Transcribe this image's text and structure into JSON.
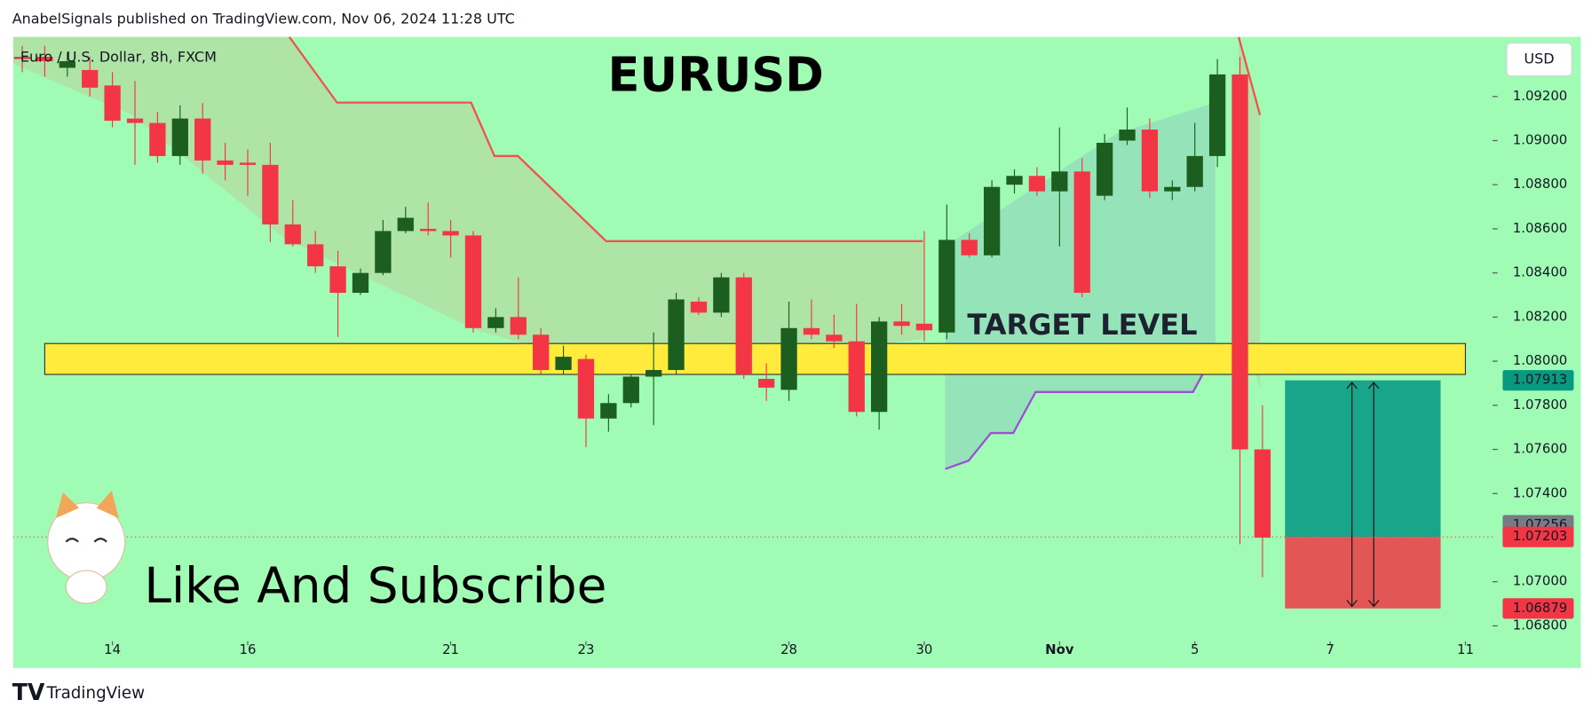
{
  "header": "AnabelSignals published on TradingView.com, Nov 06, 2024 11:28 UTC",
  "footer": "TradingView",
  "chart_data": {
    "type": "candlestick",
    "title": "EURUSD",
    "subtitle": "Euro / U.S. Dollar, 8h, FXCM",
    "currency": "USD",
    "annotations": [
      "TARGET LEVEL",
      "Like And Subscribe"
    ],
    "up_color": "#1b5e20",
    "down_color": "#f23645",
    "open": [
      1.0938,
      1.0938,
      1.0933,
      1.0932,
      1.0925,
      1.091,
      1.0908,
      1.0893,
      1.091,
      1.0891,
      1.089,
      1.0889,
      1.0862,
      1.0853,
      1.0843,
      1.0831,
      1.084,
      1.0859,
      1.086,
      1.0859,
      1.0857,
      1.0815,
      1.082,
      1.0812,
      1.0796,
      1.0801,
      1.0774,
      1.0781,
      1.0793,
      1.0796,
      1.0827,
      1.0822,
      1.0838,
      1.0792,
      1.0787,
      1.0815,
      1.0812,
      1.0809,
      1.0777,
      1.0818,
      1.0817,
      1.0813,
      1.0855,
      1.0848,
      1.088,
      1.0884,
      1.0877,
      1.0886,
      1.0875,
      1.09,
      1.0905,
      1.0877,
      1.0879,
      1.0893,
      1.093,
      1.076
    ],
    "high": [
      1.0943,
      1.0943,
      1.094,
      1.0938,
      1.0931,
      1.0927,
      1.0913,
      1.0916,
      1.0917,
      1.0899,
      1.0896,
      1.0899,
      1.0873,
      1.0859,
      1.085,
      1.0842,
      1.0864,
      1.087,
      1.0872,
      1.0864,
      1.0859,
      1.0824,
      1.0838,
      1.0815,
      1.0807,
      1.0803,
      1.0785,
      1.0794,
      1.0813,
      1.0831,
      1.0829,
      1.084,
      1.084,
      1.0799,
      1.0827,
      1.0828,
      1.0821,
      1.0826,
      1.082,
      1.0826,
      1.0859,
      1.0871,
      1.0858,
      1.0882,
      1.0887,
      1.0888,
      1.0906,
      1.0892,
      1.0903,
      1.0915,
      1.091,
      1.0882,
      1.0908,
      1.0937,
      1.0938,
      1.078
    ],
    "low": [
      1.0931,
      1.0929,
      1.0929,
      1.092,
      1.0906,
      1.0889,
      1.089,
      1.0889,
      1.0885,
      1.0882,
      1.0875,
      1.0854,
      1.0852,
      1.084,
      1.0811,
      1.083,
      1.0839,
      1.0858,
      1.0857,
      1.0847,
      1.0813,
      1.0813,
      1.081,
      1.0794,
      1.0794,
      1.0761,
      1.0768,
      1.0779,
      1.0771,
      1.0794,
      1.0821,
      1.082,
      1.0792,
      1.0782,
      1.0782,
      1.081,
      1.0806,
      1.0775,
      1.0769,
      1.0812,
      1.0809,
      1.081,
      1.0847,
      1.0847,
      1.0876,
      1.0875,
      1.0852,
      1.0829,
      1.0873,
      1.0898,
      1.0874,
      1.0873,
      1.0877,
      1.0888,
      1.0717,
      1.0702
    ],
    "close": [
      1.0937,
      1.0936,
      1.0936,
      1.0924,
      1.0909,
      1.0908,
      1.0893,
      1.091,
      1.0891,
      1.0889,
      1.0889,
      1.0862,
      1.0853,
      1.0843,
      1.0831,
      1.084,
      1.0859,
      1.0865,
      1.0859,
      1.0857,
      1.0815,
      1.082,
      1.0812,
      1.0796,
      1.0802,
      1.0774,
      1.0781,
      1.0793,
      1.0796,
      1.0828,
      1.0822,
      1.0838,
      1.0794,
      1.0788,
      1.0815,
      1.0812,
      1.0809,
      1.0777,
      1.0818,
      1.0816,
      1.0814,
      1.0855,
      1.0848,
      1.0879,
      1.0884,
      1.0877,
      1.0886,
      1.0831,
      1.0899,
      1.0905,
      1.0877,
      1.0879,
      1.0893,
      1.093,
      1.076,
      1.072
    ],
    "xlim": [
      -0.4,
      65.2
    ],
    "xticks": [
      {
        "value": 4,
        "label": "14"
      },
      {
        "value": 10,
        "label": "16"
      },
      {
        "value": 19,
        "label": "21"
      },
      {
        "value": 25,
        "label": "23"
      },
      {
        "value": 34,
        "label": "28"
      },
      {
        "value": 40,
        "label": "30"
      },
      {
        "value": 46,
        "label": "Nov"
      },
      {
        "value": 52,
        "label": "5"
      },
      {
        "value": 58,
        "label": "7"
      },
      {
        "value": 64,
        "label": "11"
      }
    ],
    "ylim": [
      1.0673,
      1.0947
    ],
    "yticks": [
      {
        "value": 1.068,
        "label": "1.06800"
      },
      {
        "value": 1.07,
        "label": "1.07000"
      },
      {
        "value": 1.074,
        "label": "1.07400"
      },
      {
        "value": 1.076,
        "label": "1.07600"
      },
      {
        "value": 1.078,
        "label": "1.07800"
      },
      {
        "value": 1.08,
        "label": "1.08000"
      },
      {
        "value": 1.082,
        "label": "1.08200"
      },
      {
        "value": 1.084,
        "label": "1.08400"
      },
      {
        "value": 1.086,
        "label": "1.08600"
      },
      {
        "value": 1.088,
        "label": "1.08800"
      },
      {
        "value": 1.09,
        "label": "1.09000"
      },
      {
        "value": 1.092,
        "label": "1.09200"
      }
    ],
    "price_tags": [
      {
        "value": 1.07913,
        "color": "#089981"
      },
      {
        "value": 1.07256,
        "color": "#787b86"
      },
      {
        "value": 1.07203,
        "color": "#f23645"
      },
      {
        "value": 1.06879,
        "color": "#f23645"
      }
    ],
    "zone": {
      "low": 1.0794,
      "high": 1.0808,
      "start": 1,
      "end": 64,
      "color": "#ffeb3b"
    },
    "position": {
      "start": 56,
      "end": 62.9
    }
  }
}
